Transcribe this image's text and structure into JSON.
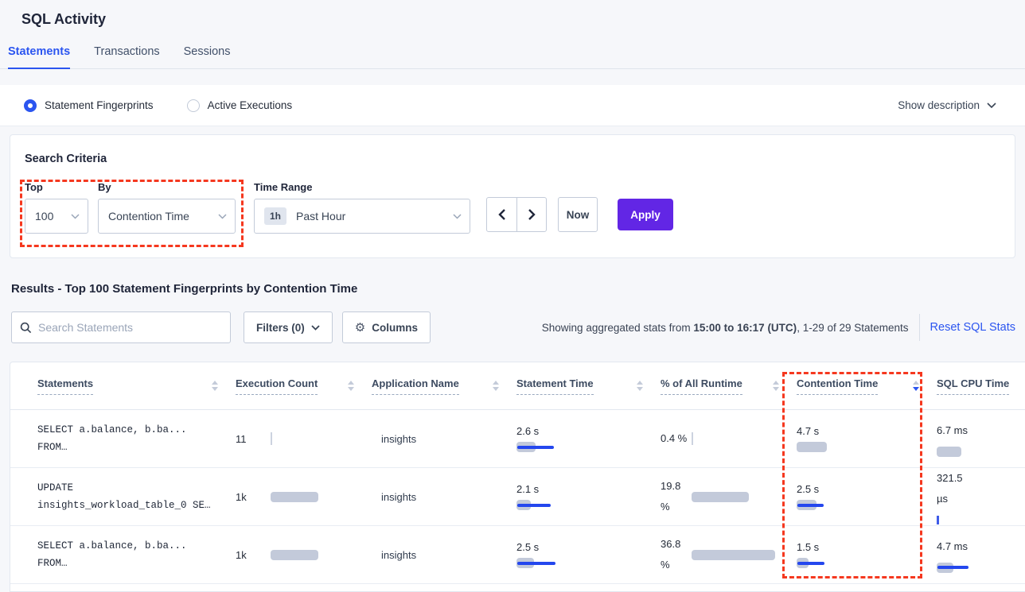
{
  "page": {
    "title": "SQL Activity"
  },
  "tabs": [
    {
      "label": "Statements",
      "active": true
    },
    {
      "label": "Transactions",
      "active": false
    },
    {
      "label": "Sessions",
      "active": false
    }
  ],
  "view_toggle": {
    "options": [
      {
        "label": "Statement Fingerprints",
        "selected": true
      },
      {
        "label": "Active Executions",
        "selected": false
      }
    ],
    "show_description": "Show description"
  },
  "search_criteria": {
    "heading": "Search Criteria",
    "top": {
      "label": "Top",
      "value": "100"
    },
    "by": {
      "label": "By",
      "value": "Contention Time"
    },
    "time_range": {
      "label": "Time Range",
      "badge": "1h",
      "value": "Past Hour"
    },
    "now_label": "Now",
    "apply_label": "Apply"
  },
  "results": {
    "heading": "Results - Top 100 Statement Fingerprints by Contention Time",
    "search_placeholder": "Search Statements",
    "filters_label": "Filters (0)",
    "columns_label": "Columns",
    "stats_prefix": "Showing aggregated stats from ",
    "stats_range": "15:00 to 16:17 (UTC)",
    "stats_suffix": ", 1-29 of 29 Statements",
    "reset_link": "Reset SQL Stats"
  },
  "table": {
    "columns": [
      {
        "label": "Statements"
      },
      {
        "label": "Execution Count"
      },
      {
        "label": "Application Name"
      },
      {
        "label": "Statement Time"
      },
      {
        "label": "% of All Runtime"
      },
      {
        "label": "Contention Time",
        "sorted": "desc"
      },
      {
        "label": "SQL CPU Time"
      }
    ],
    "rows": [
      {
        "statement": [
          "SELECT a.balance, b.ba...",
          "FROM…"
        ],
        "execution_count": {
          "text": "11",
          "bar": {
            "type": "tick"
          }
        },
        "application": "insights",
        "statement_time": {
          "text": "2.6 s",
          "bar": {
            "gray": 24,
            "blue": 46
          }
        },
        "runtime_pct": {
          "text": "0.4 %",
          "bar": {
            "type": "tick"
          }
        },
        "contention_time": {
          "text": "4.7 s",
          "bar": {
            "gray": 38,
            "blue": 0
          }
        },
        "sql_cpu": {
          "text": "6.7 ms",
          "bar": {
            "gray": 31,
            "blue": 0
          }
        }
      },
      {
        "statement": [
          "UPDATE",
          "insights_workload_table_0 SE…"
        ],
        "execution_count": {
          "text": "1k",
          "bar": {
            "gray": 60,
            "blue": 0
          }
        },
        "application": "insights",
        "statement_time": {
          "text": "2.1 s",
          "bar": {
            "gray": 18,
            "blue": 42
          }
        },
        "runtime_pct": {
          "text": "19.8 %",
          "bar": {
            "gray": 72,
            "blue": 0
          }
        },
        "contention_time": {
          "text": "2.5 s",
          "bar": {
            "gray": 25,
            "blue": 33
          }
        },
        "sql_cpu": {
          "text": "321.5 µs",
          "bar": {
            "type": "tick-blue"
          }
        }
      },
      {
        "statement": [
          "SELECT a.balance, b.ba...",
          "FROM…"
        ],
        "execution_count": {
          "text": "1k",
          "bar": {
            "gray": 60,
            "blue": 0
          }
        },
        "application": "insights",
        "statement_time": {
          "text": "2.5 s",
          "bar": {
            "gray": 22,
            "blue": 48
          }
        },
        "runtime_pct": {
          "text": "36.8 %",
          "bar": {
            "gray": 105,
            "blue": 0
          }
        },
        "contention_time": {
          "text": "1.5 s",
          "bar": {
            "gray": 15,
            "blue": 34
          }
        },
        "sql_cpu": {
          "text": "4.7 ms",
          "bar": {
            "gray": 21,
            "blue": 39
          }
        }
      }
    ]
  },
  "colors": {
    "accent_blue": "#2b55f0",
    "bar_blue": "#2447ee",
    "bar_gray": "#c3cada",
    "apply_purple": "#6226e5",
    "annotation_red": "#f5381f"
  }
}
